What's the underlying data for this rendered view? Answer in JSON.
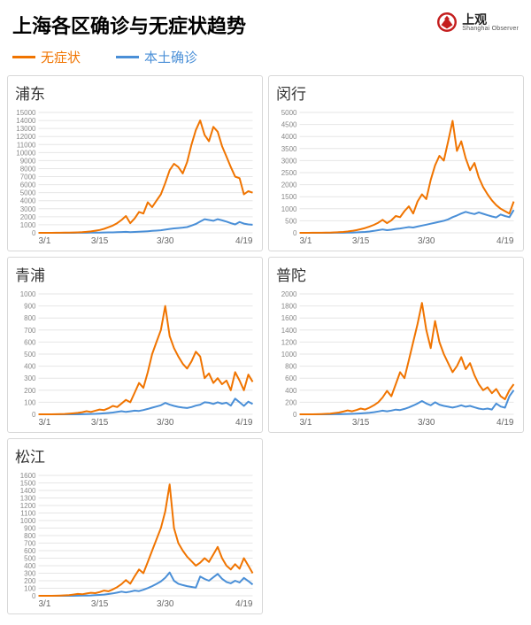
{
  "header": {
    "title": "上海各区确诊与无症状趋势",
    "logo_cn": "上观",
    "logo_en": "Shanghai Observer"
  },
  "legend": {
    "items": [
      {
        "label": "无症状",
        "color": "#f07400"
      },
      {
        "label": "本土确诊",
        "color": "#4a8fd7"
      }
    ]
  },
  "common": {
    "x_labels": [
      "3/1",
      "3/15",
      "3/30",
      "4/19"
    ],
    "x_domain": [
      0,
      49
    ],
    "x_ticks": [
      0,
      14,
      29,
      49
    ],
    "line_width": 2,
    "grid_color": "#e6e6e6",
    "background": "#ffffff",
    "label_fontsize": 8,
    "title_fontsize": 17,
    "panel_border": "#d8d8d8"
  },
  "panels": [
    {
      "name": "pudong",
      "title": "浦东",
      "ylim": [
        0,
        15000
      ],
      "ytick_step": 1000,
      "series": {
        "asymptomatic": [
          0,
          0,
          0,
          5,
          8,
          10,
          20,
          30,
          40,
          60,
          80,
          120,
          180,
          260,
          350,
          500,
          700,
          900,
          1200,
          1600,
          2100,
          1200,
          1800,
          2600,
          2400,
          3800,
          3200,
          4000,
          4800,
          6200,
          7800,
          8600,
          8200,
          7400,
          8800,
          11000,
          12800,
          14000,
          12200,
          11400,
          13200,
          12600,
          10800,
          9500,
          8200,
          7000,
          6800,
          4800,
          5200,
          5000
        ],
        "confirmed": [
          0,
          0,
          0,
          0,
          0,
          0,
          0,
          2,
          5,
          8,
          10,
          15,
          20,
          25,
          30,
          40,
          50,
          60,
          80,
          100,
          120,
          90,
          110,
          140,
          160,
          200,
          240,
          280,
          320,
          400,
          480,
          550,
          600,
          650,
          720,
          900,
          1100,
          1400,
          1700,
          1600,
          1500,
          1700,
          1550,
          1400,
          1200,
          1050,
          1350,
          1150,
          1050,
          1000
        ]
      }
    },
    {
      "name": "minhang",
      "title": "闵行",
      "ylim": [
        0,
        5000
      ],
      "ytick_step": 500,
      "series": {
        "asymptomatic": [
          0,
          0,
          0,
          2,
          3,
          5,
          8,
          12,
          18,
          26,
          38,
          55,
          80,
          110,
          150,
          200,
          260,
          330,
          420,
          540,
          400,
          520,
          700,
          650,
          900,
          1100,
          800,
          1300,
          1600,
          1400,
          2200,
          2800,
          3200,
          3000,
          3800,
          4650,
          3400,
          3800,
          3100,
          2600,
          2900,
          2300,
          1900,
          1600,
          1350,
          1150,
          1000,
          900,
          800,
          1300
        ],
        "confirmed": [
          0,
          0,
          0,
          0,
          0,
          0,
          0,
          1,
          2,
          3,
          5,
          8,
          12,
          18,
          26,
          38,
          55,
          80,
          110,
          140,
          110,
          130,
          160,
          180,
          210,
          240,
          220,
          260,
          300,
          340,
          380,
          420,
          460,
          500,
          560,
          650,
          720,
          800,
          870,
          820,
          780,
          850,
          790,
          730,
          680,
          640,
          760,
          700,
          650,
          950
        ]
      }
    },
    {
      "name": "qingpu",
      "title": "青浦",
      "ylim": [
        0,
        1000
      ],
      "ytick_step": 100,
      "series": {
        "asymptomatic": [
          0,
          0,
          0,
          0,
          1,
          2,
          3,
          5,
          8,
          12,
          18,
          26,
          20,
          30,
          40,
          35,
          50,
          70,
          60,
          90,
          120,
          100,
          180,
          260,
          220,
          350,
          500,
          600,
          700,
          900,
          650,
          550,
          480,
          420,
          380,
          440,
          520,
          480,
          300,
          340,
          260,
          300,
          250,
          280,
          200,
          350,
          280,
          200,
          330,
          270
        ],
        "confirmed": [
          0,
          0,
          0,
          0,
          0,
          0,
          0,
          0,
          0,
          0,
          1,
          2,
          3,
          4,
          6,
          8,
          11,
          15,
          20,
          26,
          20,
          25,
          30,
          28,
          35,
          45,
          55,
          65,
          75,
          95,
          80,
          70,
          62,
          56,
          52,
          60,
          72,
          80,
          100,
          96,
          86,
          100,
          88,
          96,
          72,
          130,
          100,
          70,
          105,
          85
        ]
      }
    },
    {
      "name": "putuo",
      "title": "普陀",
      "ylim": [
        0,
        2000
      ],
      "ytick_step": 200,
      "series": {
        "asymptomatic": [
          0,
          0,
          0,
          0,
          2,
          4,
          7,
          12,
          20,
          30,
          45,
          65,
          50,
          70,
          95,
          80,
          110,
          150,
          200,
          280,
          390,
          300,
          500,
          700,
          600,
          900,
          1200,
          1500,
          1850,
          1400,
          1100,
          1550,
          1200,
          1000,
          850,
          700,
          800,
          950,
          750,
          850,
          650,
          500,
          400,
          450,
          350,
          420,
          300,
          250,
          400,
          500
        ],
        "confirmed": [
          0,
          0,
          0,
          0,
          0,
          0,
          0,
          0,
          1,
          2,
          4,
          6,
          8,
          11,
          15,
          20,
          27,
          36,
          47,
          60,
          50,
          62,
          78,
          70,
          90,
          115,
          145,
          180,
          220,
          180,
          150,
          200,
          160,
          140,
          126,
          112,
          128,
          150,
          126,
          140,
          116,
          96,
          84,
          96,
          80,
          180,
          130,
          110,
          300,
          400
        ]
      }
    },
    {
      "name": "songjiang",
      "title": "松江",
      "ylim": [
        0,
        1600
      ],
      "ytick_step": 100,
      "series": {
        "asymptomatic": [
          0,
          0,
          0,
          0,
          1,
          3,
          6,
          10,
          16,
          25,
          20,
          30,
          40,
          35,
          50,
          70,
          60,
          85,
          115,
          155,
          210,
          160,
          260,
          350,
          300,
          450,
          600,
          750,
          900,
          1120,
          1480,
          900,
          700,
          600,
          520,
          460,
          400,
          440,
          500,
          450,
          550,
          650,
          500,
          400,
          350,
          420,
          360,
          500,
          400,
          300
        ],
        "confirmed": [
          0,
          0,
          0,
          0,
          0,
          0,
          0,
          0,
          0,
          1,
          2,
          3,
          5,
          8,
          12,
          17,
          24,
          32,
          42,
          55,
          45,
          55,
          70,
          62,
          80,
          102,
          128,
          158,
          190,
          240,
          310,
          200,
          160,
          142,
          128,
          118,
          108,
          255,
          224,
          200,
          246,
          290,
          226,
          184,
          166,
          200,
          176,
          238,
          195,
          150
        ]
      }
    }
  ],
  "colors": {
    "asymptomatic": "#f07400",
    "confirmed": "#4a8fd7"
  }
}
